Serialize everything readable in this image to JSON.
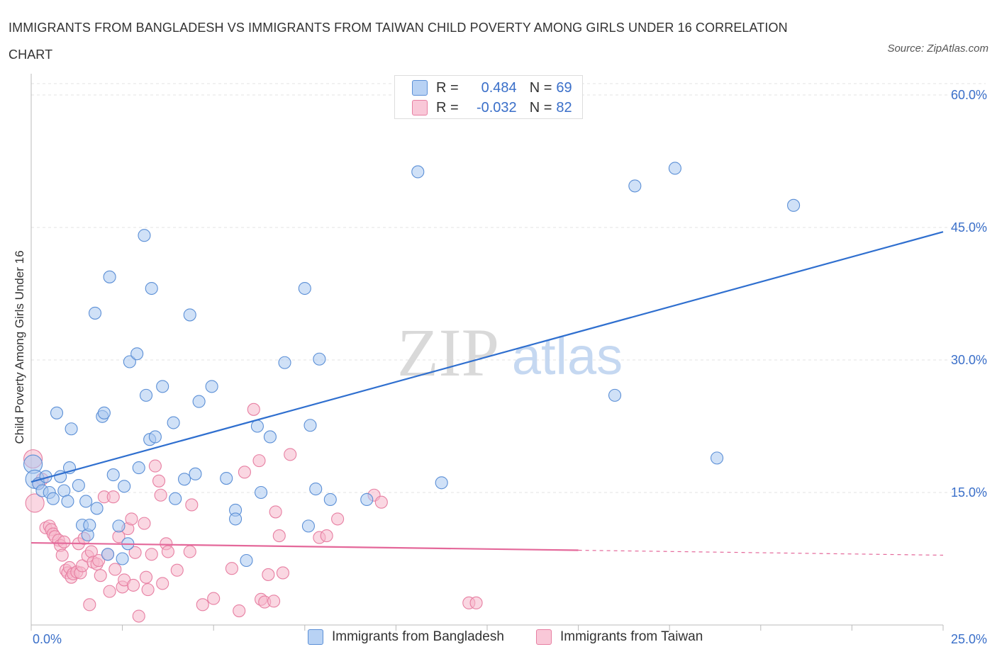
{
  "title": "IMMIGRANTS FROM BANGLADESH VS IMMIGRANTS FROM TAIWAN CHILD POVERTY AMONG GIRLS UNDER 16 CORRELATION CHART",
  "source": "Source: ZipAtlas.com",
  "watermark": {
    "zip": "ZIP",
    "atlas": "atlas"
  },
  "legend": {
    "rows": [
      {
        "r_label": "R =",
        "r_value": "0.484",
        "n_label": "N =",
        "n_value": "69"
      },
      {
        "r_label": "R =",
        "r_value": "-0.032",
        "n_label": "N =",
        "n_value": "82"
      }
    ]
  },
  "bottom_legend": {
    "bangladesh": "Immigrants from Bangladesh",
    "taiwan": "Immigrants from Taiwan"
  },
  "colors": {
    "bangladesh_fill": "#a9c8f0",
    "bangladesh_stroke": "#5b8fd6",
    "bangladesh_line": "#2f6fcf",
    "taiwan_fill": "#f6b6ca",
    "taiwan_stroke": "#e77fa2",
    "taiwan_line": "#e4689a",
    "tick_label": "#3a6fc9",
    "grid": "#e3e3e3"
  },
  "chart_data": {
    "type": "scatter",
    "title": "IMMIGRANTS FROM BANGLADESH VS IMMIGRANTS FROM TAIWAN CHILD POVERTY AMONG GIRLS UNDER 16 CORRELATION CHART",
    "xlabel": "",
    "ylabel": "Child Poverty Among Girls Under 16",
    "xlim": [
      0,
      25
    ],
    "ylim": [
      0,
      60
    ],
    "x_tick_labels": [
      "0.0%",
      "25.0%"
    ],
    "y_ticks": [
      15,
      30,
      45,
      60
    ],
    "y_tick_labels": [
      "15.0%",
      "30.0%",
      "45.0%",
      "60.0%"
    ],
    "grid": true,
    "legend_position": "top-center",
    "series": [
      {
        "name": "Immigrants from Bangladesh",
        "r": 0.484,
        "n": 69,
        "trend": {
          "x0": 0,
          "y0": 16.2,
          "x1": 25,
          "y1": 44.5,
          "solid_to": 25
        },
        "points": [
          [
            0.05,
            18.2
          ],
          [
            0.1,
            16.5
          ],
          [
            0.2,
            16.0
          ],
          [
            0.3,
            15.2
          ],
          [
            0.4,
            16.8
          ],
          [
            0.5,
            15.0
          ],
          [
            0.6,
            14.3
          ],
          [
            0.7,
            24.0
          ],
          [
            0.8,
            16.8
          ],
          [
            0.9,
            15.2
          ],
          [
            1.0,
            14.0
          ],
          [
            1.05,
            17.8
          ],
          [
            1.1,
            22.2
          ],
          [
            1.3,
            15.8
          ],
          [
            1.4,
            11.3
          ],
          [
            1.5,
            14.0
          ],
          [
            1.55,
            10.2
          ],
          [
            1.6,
            11.3
          ],
          [
            1.75,
            35.3
          ],
          [
            1.8,
            13.2
          ],
          [
            1.95,
            23.6
          ],
          [
            2.0,
            24.0
          ],
          [
            2.1,
            8.0
          ],
          [
            2.15,
            39.4
          ],
          [
            2.25,
            17.0
          ],
          [
            2.4,
            11.2
          ],
          [
            2.5,
            7.5
          ],
          [
            2.55,
            15.7
          ],
          [
            2.65,
            9.2
          ],
          [
            2.7,
            29.8
          ],
          [
            2.9,
            30.7
          ],
          [
            2.95,
            17.8
          ],
          [
            3.1,
            44.1
          ],
          [
            3.15,
            26.0
          ],
          [
            3.25,
            21.0
          ],
          [
            3.3,
            38.1
          ],
          [
            3.4,
            21.3
          ],
          [
            3.6,
            27.0
          ],
          [
            3.9,
            22.9
          ],
          [
            3.95,
            14.3
          ],
          [
            4.2,
            16.5
          ],
          [
            4.35,
            35.1
          ],
          [
            4.5,
            17.1
          ],
          [
            4.6,
            25.3
          ],
          [
            4.95,
            27.0
          ],
          [
            5.35,
            16.6
          ],
          [
            5.6,
            13.0
          ],
          [
            5.6,
            12.0
          ],
          [
            5.9,
            7.3
          ],
          [
            6.2,
            22.5
          ],
          [
            6.3,
            15.0
          ],
          [
            6.55,
            21.3
          ],
          [
            6.95,
            29.7
          ],
          [
            7.5,
            38.1
          ],
          [
            7.6,
            11.2
          ],
          [
            7.65,
            22.6
          ],
          [
            7.8,
            15.4
          ],
          [
            7.9,
            30.1
          ],
          [
            8.2,
            14.2
          ],
          [
            9.2,
            14.2
          ],
          [
            10.6,
            51.3
          ],
          [
            11.25,
            16.1
          ],
          [
            16.0,
            26.0
          ],
          [
            16.55,
            49.7
          ],
          [
            17.65,
            51.7
          ],
          [
            18.8,
            18.9
          ],
          [
            20.9,
            47.5
          ]
        ]
      },
      {
        "name": "Immigrants from Taiwan",
        "r": -0.032,
        "n": 82,
        "trend": {
          "x0": 0,
          "y0": 9.3,
          "x1": 25,
          "y1": 7.9,
          "solid_to": 15.0
        },
        "points": [
          [
            0.05,
            18.8
          ],
          [
            0.1,
            13.8
          ],
          [
            0.2,
            16.0
          ],
          [
            0.3,
            16.5
          ],
          [
            0.4,
            11.0
          ],
          [
            0.5,
            11.2
          ],
          [
            0.55,
            10.8
          ],
          [
            0.6,
            10.3
          ],
          [
            0.65,
            10.0
          ],
          [
            0.75,
            9.6
          ],
          [
            0.8,
            9.0
          ],
          [
            0.85,
            7.9
          ],
          [
            0.9,
            9.4
          ],
          [
            0.95,
            6.2
          ],
          [
            1.0,
            5.9
          ],
          [
            1.05,
            6.5
          ],
          [
            1.1,
            5.4
          ],
          [
            1.15,
            5.8
          ],
          [
            1.25,
            6.0
          ],
          [
            1.3,
            9.2
          ],
          [
            1.35,
            5.9
          ],
          [
            1.4,
            6.7
          ],
          [
            1.45,
            9.8
          ],
          [
            1.55,
            7.8
          ],
          [
            1.6,
            2.3
          ],
          [
            1.65,
            8.3
          ],
          [
            1.7,
            7.1
          ],
          [
            1.8,
            6.9
          ],
          [
            1.85,
            7.3
          ],
          [
            1.9,
            5.6
          ],
          [
            2.0,
            14.5
          ],
          [
            2.1,
            8.0
          ],
          [
            2.15,
            3.8
          ],
          [
            2.25,
            14.5
          ],
          [
            2.3,
            6.3
          ],
          [
            2.4,
            10.0
          ],
          [
            2.5,
            4.3
          ],
          [
            2.55,
            5.1
          ],
          [
            2.65,
            10.9
          ],
          [
            2.75,
            12.0
          ],
          [
            2.8,
            4.5
          ],
          [
            2.85,
            8.2
          ],
          [
            2.95,
            1.0
          ],
          [
            3.1,
            11.5
          ],
          [
            3.15,
            5.4
          ],
          [
            3.2,
            4.0
          ],
          [
            3.3,
            8.0
          ],
          [
            3.4,
            18.0
          ],
          [
            3.5,
            16.3
          ],
          [
            3.55,
            14.7
          ],
          [
            3.6,
            4.7
          ],
          [
            3.7,
            9.2
          ],
          [
            3.75,
            8.3
          ],
          [
            4.0,
            6.2
          ],
          [
            4.35,
            8.3
          ],
          [
            4.4,
            13.6
          ],
          [
            4.7,
            2.3
          ],
          [
            5.0,
            3.0
          ],
          [
            5.5,
            6.4
          ],
          [
            5.7,
            1.6
          ],
          [
            5.85,
            17.3
          ],
          [
            6.1,
            24.4
          ],
          [
            6.25,
            18.6
          ],
          [
            6.3,
            2.9
          ],
          [
            6.4,
            2.6
          ],
          [
            6.5,
            5.7
          ],
          [
            6.65,
            2.7
          ],
          [
            6.7,
            12.8
          ],
          [
            6.8,
            10.1
          ],
          [
            6.9,
            5.9
          ],
          [
            7.1,
            19.3
          ],
          [
            7.9,
            9.9
          ],
          [
            8.1,
            10.1
          ],
          [
            8.4,
            12.0
          ],
          [
            9.4,
            14.7
          ],
          [
            9.6,
            13.9
          ],
          [
            12.0,
            2.5
          ],
          [
            12.2,
            2.5
          ]
        ]
      }
    ]
  }
}
